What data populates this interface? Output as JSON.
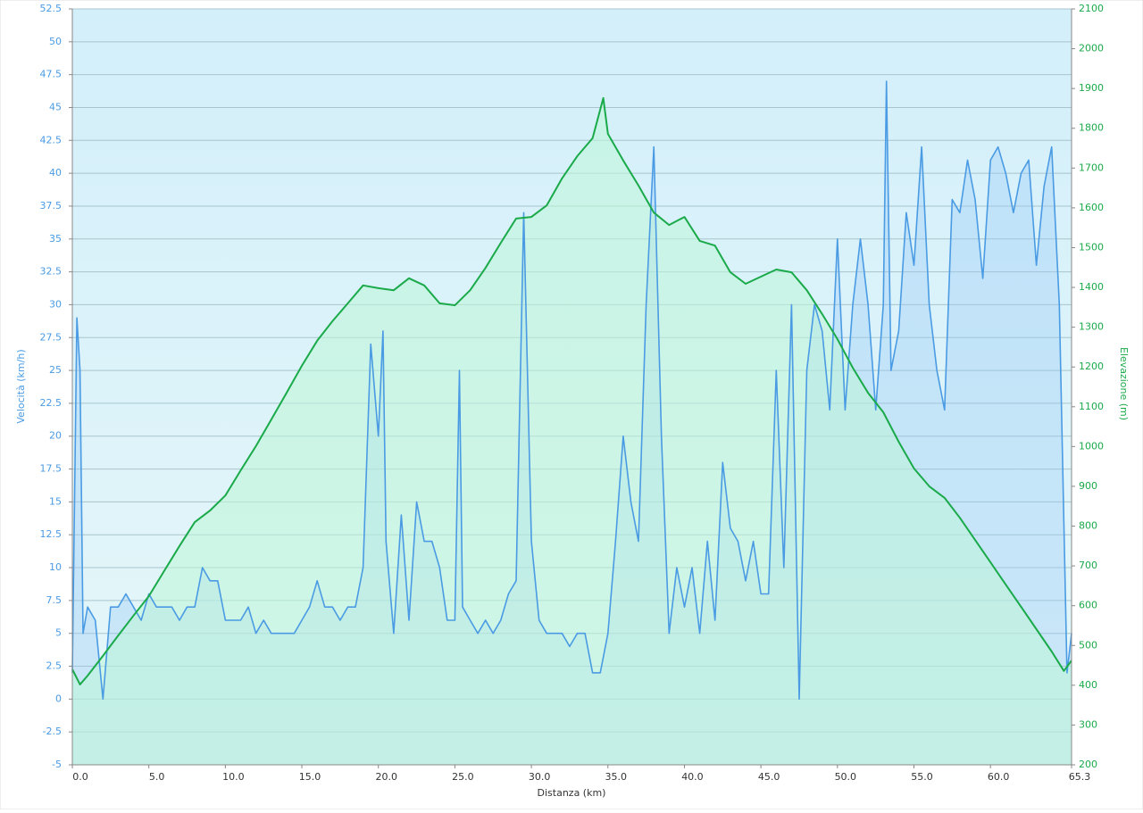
{
  "chart_data": {
    "type": "line",
    "xlabel": "Distanza  (km)",
    "ylabel": "Velocità (km/h)",
    "y2label": "Elevazione (m)",
    "xlim": [
      0,
      65.3
    ],
    "xticks": [
      {
        "value": 0,
        "label": "0.0"
      },
      {
        "value": 5,
        "label": "5.0"
      },
      {
        "value": 10,
        "label": "10.0"
      },
      {
        "value": 15,
        "label": "15.0"
      },
      {
        "value": 20,
        "label": "20.0"
      },
      {
        "value": 25,
        "label": "25.0"
      },
      {
        "value": 30,
        "label": "30.0"
      },
      {
        "value": 35,
        "label": "35.0"
      },
      {
        "value": 40,
        "label": "40.0"
      },
      {
        "value": 45,
        "label": "45.0"
      },
      {
        "value": 50,
        "label": "50.0"
      },
      {
        "value": 55,
        "label": "55.0"
      },
      {
        "value": 60,
        "label": "60.0"
      },
      65.3
    ],
    "ylim": [
      -5,
      52.5
    ],
    "yticks": [
      -5,
      -2.5,
      0,
      2.5,
      5,
      7.5,
      10,
      12.5,
      15,
      17.5,
      20,
      22.5,
      25,
      27.5,
      30,
      32.5,
      35,
      37.5,
      40,
      42.5,
      45,
      47.5,
      50,
      52.5
    ],
    "y2lim": [
      200,
      2100
    ],
    "y2ticks": [
      200,
      300,
      400,
      500,
      600,
      700,
      800,
      900,
      1000,
      1100,
      1200,
      1300,
      1400,
      1500,
      1600,
      1700,
      1800,
      1900,
      2000,
      2100
    ],
    "grid": true,
    "series": [
      {
        "color": "#4a9be3",
        "axis": "y",
        "x": [
          0,
          0.3,
          0.5,
          0.7,
          1,
          1.5,
          2,
          2.5,
          3,
          3.5,
          4,
          4.5,
          5,
          5.5,
          6,
          6.5,
          7,
          7.5,
          8,
          8.5,
          9,
          9.5,
          10,
          10.5,
          11,
          11.5,
          12,
          12.5,
          13,
          13.5,
          14,
          14.5,
          15,
          15.5,
          16,
          16.5,
          17,
          17.5,
          18,
          18.5,
          19,
          19.5,
          20,
          20.3,
          20.5,
          21,
          21.5,
          22,
          22.5,
          23,
          23.5,
          24,
          24.5,
          25,
          25.3,
          25.5,
          26,
          26.5,
          27,
          27.5,
          28,
          28.5,
          29,
          29.5,
          30,
          30.5,
          31,
          31.5,
          32,
          32.5,
          33,
          33.5,
          34,
          34.5,
          35,
          35.5,
          36,
          36.5,
          37,
          37.5,
          38,
          38.5,
          39,
          39.5,
          40,
          40.5,
          41,
          41.5,
          42,
          42.5,
          43,
          43.5,
          44,
          44.5,
          45,
          45.5,
          46,
          46.5,
          47,
          47.5,
          48,
          48.5,
          49,
          49.5,
          50,
          50.5,
          51,
          51.5,
          52,
          52.5,
          53,
          53.2,
          53.5,
          54,
          54.5,
          55,
          55.5,
          56,
          56.5,
          57,
          57.5,
          58,
          58.5,
          59,
          59.5,
          60,
          60.5,
          61,
          61.5,
          62,
          62.5,
          63,
          63.5,
          64,
          64.5,
          65,
          65.3
        ],
        "values": [
          2,
          29,
          25,
          5,
          7,
          6,
          0,
          7,
          7,
          8,
          7,
          6,
          8,
          7,
          7,
          7,
          6,
          7,
          7,
          10,
          9,
          9,
          6,
          6,
          6,
          7,
          5,
          6,
          5,
          5,
          5,
          5,
          6,
          7,
          9,
          7,
          7,
          6,
          7,
          7,
          10,
          27,
          20,
          28,
          12,
          5,
          14,
          6,
          15,
          12,
          12,
          10,
          6,
          6,
          25,
          7,
          6,
          5,
          6,
          5,
          6,
          8,
          9,
          37,
          12,
          6,
          5,
          5,
          5,
          4,
          5,
          5,
          2,
          2,
          5,
          12,
          20,
          15,
          12,
          30,
          42,
          20,
          5,
          10,
          7,
          10,
          5,
          12,
          6,
          18,
          13,
          12,
          9,
          12,
          8,
          8,
          25,
          10,
          30,
          0,
          25,
          30,
          28,
          22,
          35,
          22,
          30,
          35,
          30,
          22,
          30,
          47,
          25,
          28,
          37,
          33,
          42,
          30,
          25,
          22,
          38,
          37,
          41,
          38,
          32,
          41,
          42,
          40,
          37,
          40,
          41,
          33,
          39,
          42,
          30,
          2,
          5
        ]
      },
      {
        "color": "#1aaa4a",
        "axis": "y2",
        "x": [
          0,
          0.5,
          1,
          2,
          3,
          4,
          5,
          6,
          7,
          8,
          9,
          10,
          11,
          12,
          13,
          14,
          15,
          16,
          17,
          18,
          19,
          20,
          21,
          22,
          23,
          24,
          25,
          26,
          27,
          28,
          29,
          30,
          31,
          32,
          33,
          34,
          34.7,
          35,
          36,
          37,
          38,
          39,
          40,
          41,
          42,
          43,
          44,
          45,
          46,
          47,
          48,
          49,
          50,
          51,
          52,
          53,
          54,
          55,
          56,
          57,
          58,
          59,
          60,
          61,
          62,
          63,
          64,
          64.8,
          65.3
        ],
        "values": [
          440,
          402,
          424,
          474,
          525,
          575,
          624,
          687,
          750,
          810,
          839,
          877,
          940,
          1001,
          1068,
          1135,
          1203,
          1266,
          1315,
          1360,
          1405,
          1398,
          1393,
          1423,
          1405,
          1360,
          1355,
          1393,
          1449,
          1512,
          1573,
          1577,
          1606,
          1674,
          1730,
          1775,
          1876,
          1786,
          1719,
          1656,
          1588,
          1557,
          1577,
          1517,
          1505,
          1438,
          1409,
          1427,
          1445,
          1438,
          1393,
          1333,
          1270,
          1198,
          1135,
          1086,
          1012,
          945,
          900,
          871,
          821,
          765,
          709,
          653,
          597,
          541,
          485,
          436,
          462
        ]
      }
    ]
  }
}
